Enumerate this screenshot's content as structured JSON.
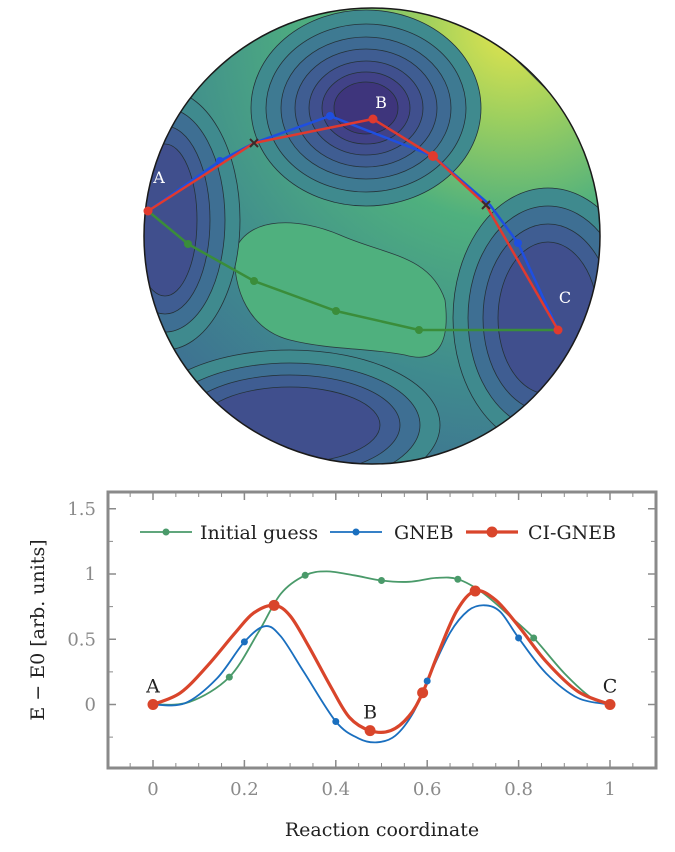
{
  "figure": {
    "sphere_labels": [
      "A",
      "B",
      "C"
    ]
  },
  "chart_data": [
    {
      "type": "contour",
      "colormap": [
        "#3b2a73",
        "#3e5f95",
        "#3f8a8e",
        "#4fb07e",
        "#9ccf5f",
        "#e5e54c"
      ],
      "minima_labels": [
        "A",
        "B",
        "C"
      ],
      "paths": [
        {
          "name": "Initial guess",
          "color": "#3a8d3a"
        },
        {
          "name": "GNEB",
          "color": "#1f4fe0"
        },
        {
          "name": "CI-GNEB",
          "color": "#e03a2f"
        }
      ]
    },
    {
      "type": "line",
      "xlabel": "Reaction coordinate",
      "ylabel": "E − E0 [arb. units]",
      "xlim": [
        -0.1,
        1.1
      ],
      "ylim": [
        -0.5,
        1.6
      ],
      "xticks": [
        "0",
        "0.2",
        "0.4",
        "0.6",
        "0.8",
        "1"
      ],
      "yticks": [
        "0",
        "0.5",
        "1",
        "1.5"
      ],
      "legend_position": "top",
      "point_labels": [
        {
          "text": "A",
          "x": 0,
          "y": 0
        },
        {
          "text": "B",
          "x": 0.475,
          "y": -0.2
        },
        {
          "text": "C",
          "x": 1,
          "y": 0
        }
      ],
      "series": [
        {
          "name": "Initial guess",
          "color": "#4a9a6a",
          "markers": [
            [
              0,
              0
            ],
            [
              0.167,
              0.21
            ],
            [
              0.333,
              0.99
            ],
            [
              0.5,
              0.95
            ],
            [
              0.667,
              0.96
            ],
            [
              0.833,
              0.51
            ],
            [
              1.0,
              0
            ]
          ],
          "curve": [
            [
              0,
              0
            ],
            [
              0.08,
              0.02
            ],
            [
              0.167,
              0.21
            ],
            [
              0.23,
              0.55
            ],
            [
              0.28,
              0.85
            ],
            [
              0.333,
              0.99
            ],
            [
              0.38,
              1.02
            ],
            [
              0.44,
              0.99
            ],
            [
              0.5,
              0.95
            ],
            [
              0.56,
              0.94
            ],
            [
              0.62,
              0.97
            ],
            [
              0.667,
              0.96
            ],
            [
              0.72,
              0.86
            ],
            [
              0.78,
              0.68
            ],
            [
              0.833,
              0.51
            ],
            [
              0.9,
              0.24
            ],
            [
              0.96,
              0.05
            ],
            [
              1.0,
              0
            ]
          ]
        },
        {
          "name": "GNEB",
          "color": "#1a6fbf",
          "markers": [
            [
              0,
              0
            ],
            [
              0.2,
              0.48
            ],
            [
              0.4,
              -0.13
            ],
            [
              0.6,
              0.18
            ],
            [
              0.8,
              0.51
            ],
            [
              1.0,
              0
            ]
          ],
          "curve": [
            [
              0,
              0
            ],
            [
              0.07,
              0.01
            ],
            [
              0.14,
              0.2
            ],
            [
              0.2,
              0.48
            ],
            [
              0.245,
              0.6
            ],
            [
              0.28,
              0.52
            ],
            [
              0.33,
              0.25
            ],
            [
              0.4,
              -0.13
            ],
            [
              0.45,
              -0.26
            ],
            [
              0.49,
              -0.29
            ],
            [
              0.53,
              -0.24
            ],
            [
              0.57,
              -0.06
            ],
            [
              0.6,
              0.18
            ],
            [
              0.65,
              0.55
            ],
            [
              0.69,
              0.72
            ],
            [
              0.725,
              0.76
            ],
            [
              0.76,
              0.71
            ],
            [
              0.8,
              0.51
            ],
            [
              0.86,
              0.24
            ],
            [
              0.93,
              0.05
            ],
            [
              1.0,
              0
            ]
          ]
        },
        {
          "name": "CI-GNEB",
          "color": "#d9452b",
          "markers": [
            [
              0,
              0
            ],
            [
              0.265,
              0.76
            ],
            [
              0.475,
              -0.2
            ],
            [
              0.59,
              0.09
            ],
            [
              0.705,
              0.87
            ],
            [
              1.0,
              0
            ]
          ],
          "curve": [
            [
              0,
              0
            ],
            [
              0.06,
              0.09
            ],
            [
              0.12,
              0.3
            ],
            [
              0.18,
              0.55
            ],
            [
              0.22,
              0.7
            ],
            [
              0.265,
              0.76
            ],
            [
              0.3,
              0.68
            ],
            [
              0.34,
              0.45
            ],
            [
              0.39,
              0.13
            ],
            [
              0.43,
              -0.1
            ],
            [
              0.475,
              -0.2
            ],
            [
              0.52,
              -0.2
            ],
            [
              0.56,
              -0.09
            ],
            [
              0.59,
              0.09
            ],
            [
              0.625,
              0.4
            ],
            [
              0.665,
              0.72
            ],
            [
              0.705,
              0.87
            ],
            [
              0.75,
              0.8
            ],
            [
              0.8,
              0.6
            ],
            [
              0.86,
              0.33
            ],
            [
              0.93,
              0.1
            ],
            [
              1.0,
              0
            ]
          ]
        }
      ]
    }
  ]
}
